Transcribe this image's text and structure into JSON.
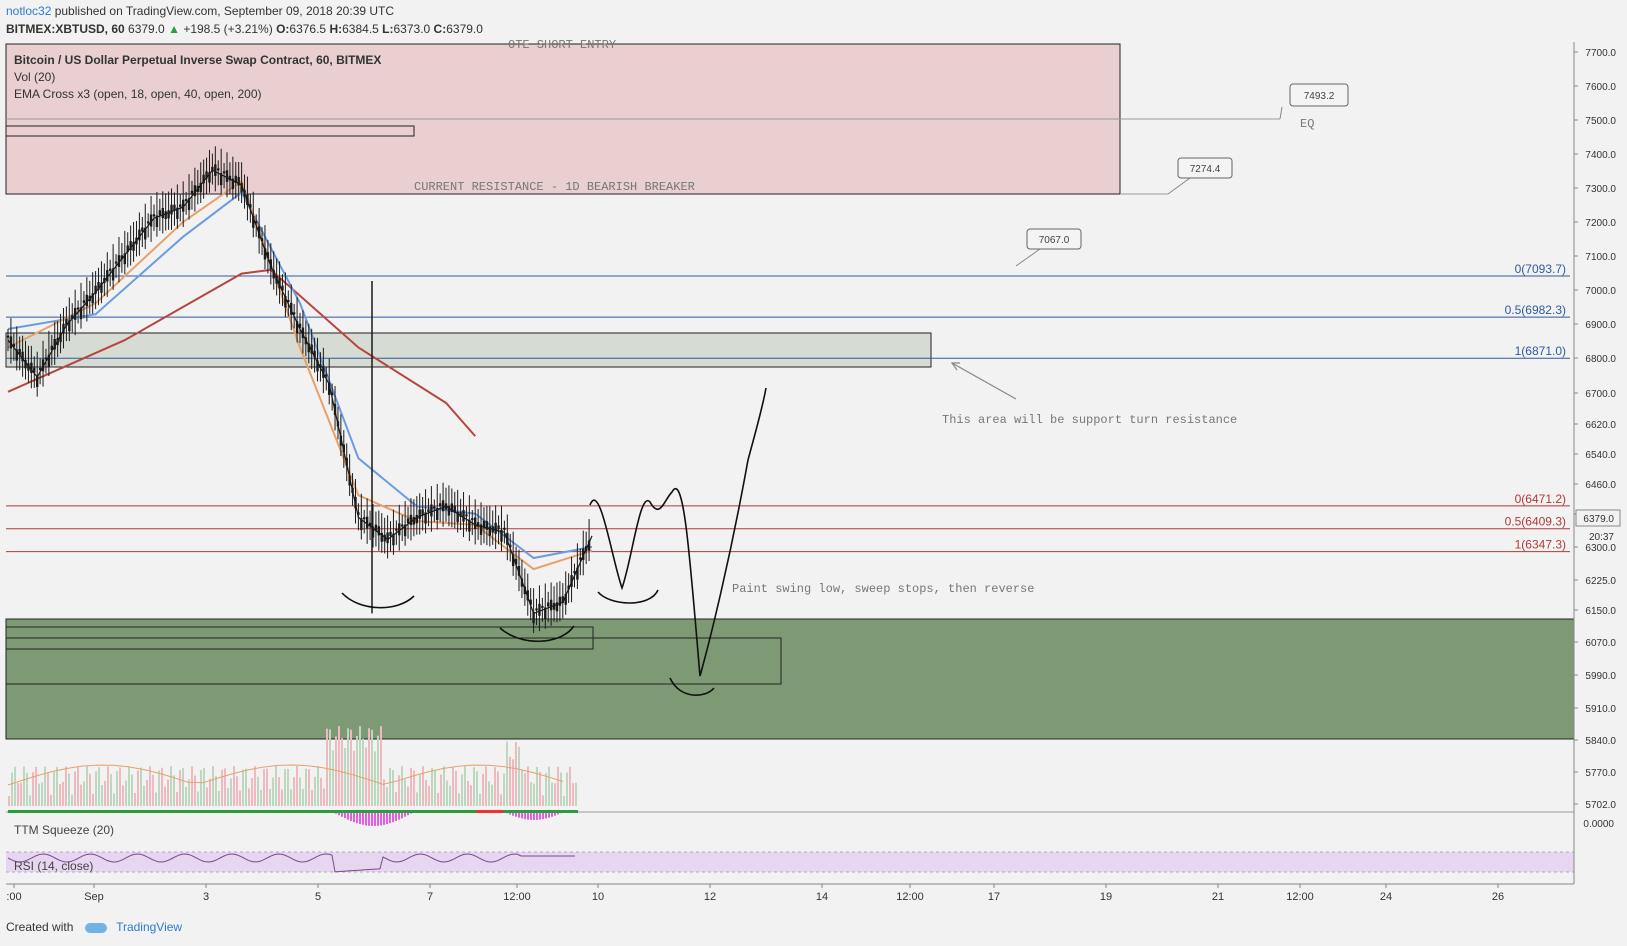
{
  "header": {
    "user": "notloc32",
    "published": " published on TradingView.com, September 09, 2018 20:39 UTC",
    "symbol": "BITMEX:XBTUSD, 60",
    "last": "6379.0",
    "change": "+198.5 (+3.21%)",
    "o_label": "O:",
    "o": "6376.5",
    "h_label": "H:",
    "h": "6384.5",
    "l_label": "L:",
    "l": "6373.0",
    "c_label": "C:",
    "c": "6379.0"
  },
  "studies": {
    "title": "Bitcoin / US Dollar Perpetual Inverse Swap Contract, 60, BITMEX",
    "vol": "Vol (20)",
    "ema": "EMA Cross x3 (open, 18, open, 40, open, 200)",
    "ttm": "TTM Squeeze (20)",
    "rsi": "RSI (14, close)"
  },
  "footer": {
    "created": "Created with",
    "brand": "TradingView"
  },
  "colors": {
    "candle": "#1a1a1a",
    "ema18": "#e8a16a",
    "ema40": "#6b9be0",
    "ema200": "#b8443e",
    "resistance_zone": "#e9cfd0",
    "support_zone": "#7e9a75",
    "grey_zone": "#d6dbd4",
    "fib_blue": "#2f5a9e",
    "fib_red": "#b03a3a",
    "rsi_band": "#e6d6ef"
  },
  "chart_data": {
    "type": "candlestick",
    "y_ticks": [
      "7700.0",
      "7600.0",
      "7500.0",
      "7400.0",
      "7300.0",
      "7200.0",
      "7100.0",
      "7000.0",
      "6900.0",
      "6800.0",
      "6700.0",
      "6620.0",
      "6540.0",
      "6460.0",
      "6379.0",
      "6300.0",
      "6225.0",
      "6150.0",
      "6070.0",
      "5990.0",
      "5910.0",
      "5840.0",
      "5770.0",
      "5702.0"
    ],
    "last_price_label": "6379.0",
    "countdown_label": "20:37",
    "x_ticks": [
      ":00",
      "Sep",
      "3",
      "5",
      "7",
      "12:00",
      "10",
      "12",
      "14",
      "12:00",
      "17",
      "19",
      "21",
      "12:00",
      "24",
      "26"
    ],
    "price_path": [
      [
        0,
        6920
      ],
      [
        1,
        6820
      ],
      [
        2,
        6960
      ],
      [
        3,
        7050
      ],
      [
        4,
        7150
      ],
      [
        5,
        7250
      ],
      [
        6,
        7280
      ],
      [
        7,
        7380
      ],
      [
        8,
        7340
      ],
      [
        9,
        7120
      ],
      [
        10,
        6950
      ],
      [
        11,
        6800
      ],
      [
        12,
        6440
      ],
      [
        13,
        6380
      ],
      [
        14,
        6440
      ],
      [
        15,
        6470
      ],
      [
        16,
        6420
      ],
      [
        17,
        6400
      ],
      [
        18,
        6180
      ],
      [
        19,
        6210
      ],
      [
        20,
        6390
      ]
    ],
    "ema18": [
      [
        0,
        6900
      ],
      [
        3,
        7020
      ],
      [
        6,
        7240
      ],
      [
        8,
        7350
      ],
      [
        10,
        6900
      ],
      [
        12,
        6500
      ],
      [
        14,
        6430
      ],
      [
        16,
        6420
      ],
      [
        18,
        6300
      ],
      [
        20,
        6350
      ]
    ],
    "ema40": [
      [
        0,
        6950
      ],
      [
        3,
        6990
      ],
      [
        6,
        7200
      ],
      [
        8,
        7320
      ],
      [
        10,
        7020
      ],
      [
        12,
        6600
      ],
      [
        14,
        6470
      ],
      [
        16,
        6450
      ],
      [
        18,
        6330
      ],
      [
        20,
        6360
      ]
    ],
    "ema200": [
      [
        0,
        6780
      ],
      [
        4,
        6920
      ],
      [
        8,
        7100
      ],
      [
        9,
        7110
      ],
      [
        12,
        6900
      ],
      [
        15,
        6750
      ],
      [
        16,
        6660
      ]
    ],
    "fib_blue": [
      {
        "label": "0(7093.7)",
        "value": 7093.7
      },
      {
        "label": "0.5(6982.3)",
        "value": 6982.3
      },
      {
        "label": "1(6871.0)",
        "value": 6871.0
      }
    ],
    "fib_red": [
      {
        "label": "0(6471.2)",
        "value": 6471.2
      },
      {
        "label": "0.5(6409.3)",
        "value": 6409.3
      },
      {
        "label": "1(6347.3)",
        "value": 6347.3
      }
    ],
    "callouts": [
      {
        "label": "7493.2",
        "value": 7493.2
      },
      {
        "label": "7274.4",
        "value": 7274.4
      },
      {
        "label": "7067.0",
        "value": 7067.0
      }
    ],
    "annotations": {
      "ote": "OTE SHORT ENTRY",
      "eq": "EQ",
      "resistance": "CURRENT RESISTANCE - 1D BEARISH BREAKER",
      "support_turn": "This area will be support turn resistance",
      "paint": "Paint swing low, sweep stops, then reverse"
    },
    "squeeze_tick": "0.0000"
  }
}
